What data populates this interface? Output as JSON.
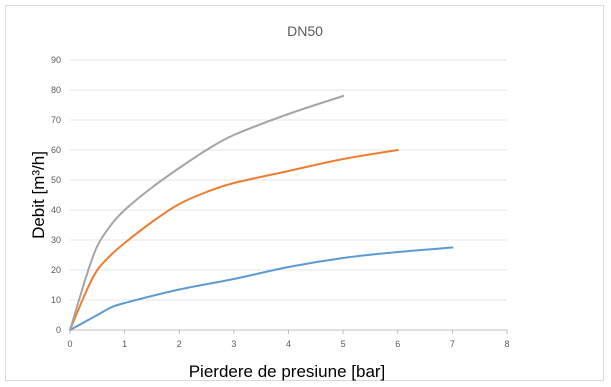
{
  "chart_data": {
    "type": "line",
    "title": "DN50",
    "xlabel": "Pierdere de presiune [bar]",
    "ylabel": "Debit [m³/h]",
    "xlim": [
      0,
      8
    ],
    "ylim": [
      0,
      90
    ],
    "xticks": [
      "0",
      "1",
      "2",
      "3",
      "4",
      "5",
      "6",
      "7",
      "8"
    ],
    "yticks": [
      "0",
      "10",
      "20",
      "30",
      "40",
      "50",
      "60",
      "70",
      "80",
      "90"
    ],
    "grid": true,
    "legend": "none",
    "series": [
      {
        "color": "#5b9bd5",
        "x": [
          0,
          0.5,
          0.75,
          1,
          2,
          3,
          4,
          5,
          6,
          7
        ],
        "y": [
          0,
          5,
          7.5,
          9,
          13.5,
          17,
          21,
          24,
          26,
          27.5
        ]
      },
      {
        "color": "#ed7d31",
        "x": [
          0,
          0.3,
          0.5,
          0.75,
          1,
          1.5,
          2,
          2.5,
          3,
          4,
          5,
          6
        ],
        "y": [
          0,
          13,
          20,
          25,
          29,
          36,
          42,
          46,
          49,
          53,
          57,
          60
        ]
      },
      {
        "color": "#a5a5a5",
        "x": [
          0,
          0.3,
          0.5,
          0.75,
          1,
          1.5,
          2,
          2.5,
          3,
          4,
          5
        ],
        "y": [
          0,
          18,
          28,
          35,
          40,
          47.5,
          54,
          60,
          65,
          72,
          78
        ]
      }
    ]
  }
}
